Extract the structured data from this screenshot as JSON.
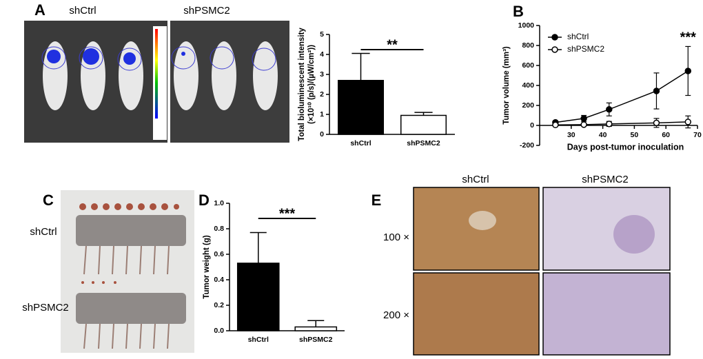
{
  "panels": [
    "A",
    "B",
    "C",
    "D",
    "E"
  ],
  "image_a": {
    "labels": [
      "shCtrl",
      "shPSMC2"
    ]
  },
  "image_c": {
    "labels": [
      "shCtrl",
      "shPSMC2"
    ]
  },
  "image_e": {
    "columns": [
      "shCtrl",
      "shPSMC2"
    ],
    "rows": [
      "100 ×",
      "200 ×"
    ]
  },
  "chart_data": [
    {
      "type": "bar",
      "categories": [
        "shCtrl",
        "shPSMC2"
      ],
      "values": [
        2.7,
        0.95
      ],
      "errors": [
        1.35,
        0.15
      ],
      "colors": [
        "#000000",
        "#ffffff"
      ],
      "ylim": [
        0,
        5
      ],
      "yticks": [
        0,
        1,
        2,
        3,
        4,
        5
      ],
      "ylabel": [
        "Total bioluminescent intensity",
        "(×10¹⁰ (p/s)/(µW/cm²))"
      ],
      "annotation": "**"
    },
    {
      "type": "line",
      "x": [
        25,
        34,
        42,
        57,
        67
      ],
      "series": [
        {
          "name": "shCtrl",
          "color": "#000000",
          "values": [
            30,
            70,
            160,
            345,
            545
          ],
          "errors": [
            10,
            30,
            65,
            180,
            245
          ]
        },
        {
          "name": "shPSMC2",
          "color": "#ffffff",
          "values": [
            5,
            8,
            15,
            25,
            35
          ],
          "errors": [
            5,
            10,
            25,
            45,
            60
          ]
        }
      ],
      "xlim": [
        20,
        70
      ],
      "xticks": [
        30,
        40,
        50,
        60,
        70
      ],
      "ylim": [
        -200,
        1000
      ],
      "yticks": [
        -200,
        0,
        200,
        400,
        600,
        800,
        1000
      ],
      "xlabel": "Days post-tumor inoculation",
      "ylabel": [
        "Tumor volume (mm³)"
      ],
      "annotation": "***",
      "legend": "upper-left"
    },
    {
      "type": "bar",
      "categories": [
        "shCtrl",
        "shPSMC2"
      ],
      "values": [
        0.53,
        0.03
      ],
      "errors": [
        0.24,
        0.05
      ],
      "colors": [
        "#000000",
        "#ffffff"
      ],
      "ylim": [
        0,
        1
      ],
      "yticks": [
        {
          "value": 0,
          "label": "0.0"
        },
        0.2,
        0.4,
        0.6,
        0.8,
        {
          "value": 1,
          "label": "1.0"
        }
      ],
      "ylabel": [
        "Tumor weight (g)"
      ],
      "annotation": "***"
    }
  ]
}
